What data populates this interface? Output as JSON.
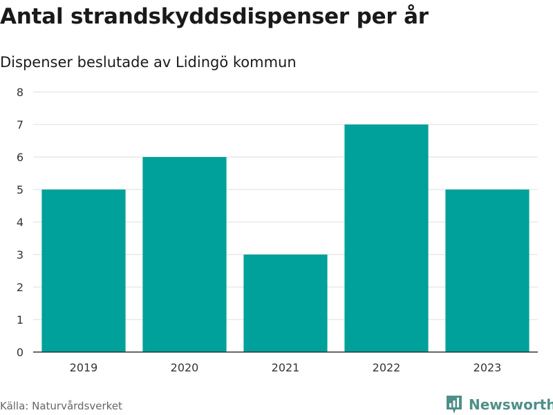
{
  "chart_data": {
    "type": "bar",
    "title": "Antal strandskyddsdispenser per år",
    "subtitle": "Dispenser beslutade av Lidingö kommun",
    "categories": [
      "2019",
      "2020",
      "2021",
      "2022",
      "2023"
    ],
    "values": [
      5,
      6,
      3,
      7,
      5
    ],
    "yticks": [
      0,
      1,
      2,
      3,
      4,
      5,
      6,
      7,
      8
    ],
    "ylim": [
      0,
      8
    ],
    "xlabel": "",
    "ylabel": "",
    "grid": true,
    "bar_color": "#00a19a"
  },
  "footer": {
    "source": "Källa: Naturvårdsverket",
    "brand": "Newsworthy",
    "brand_icon": "bar-chart-logo-icon",
    "brand_color": "#4f8f8a"
  }
}
